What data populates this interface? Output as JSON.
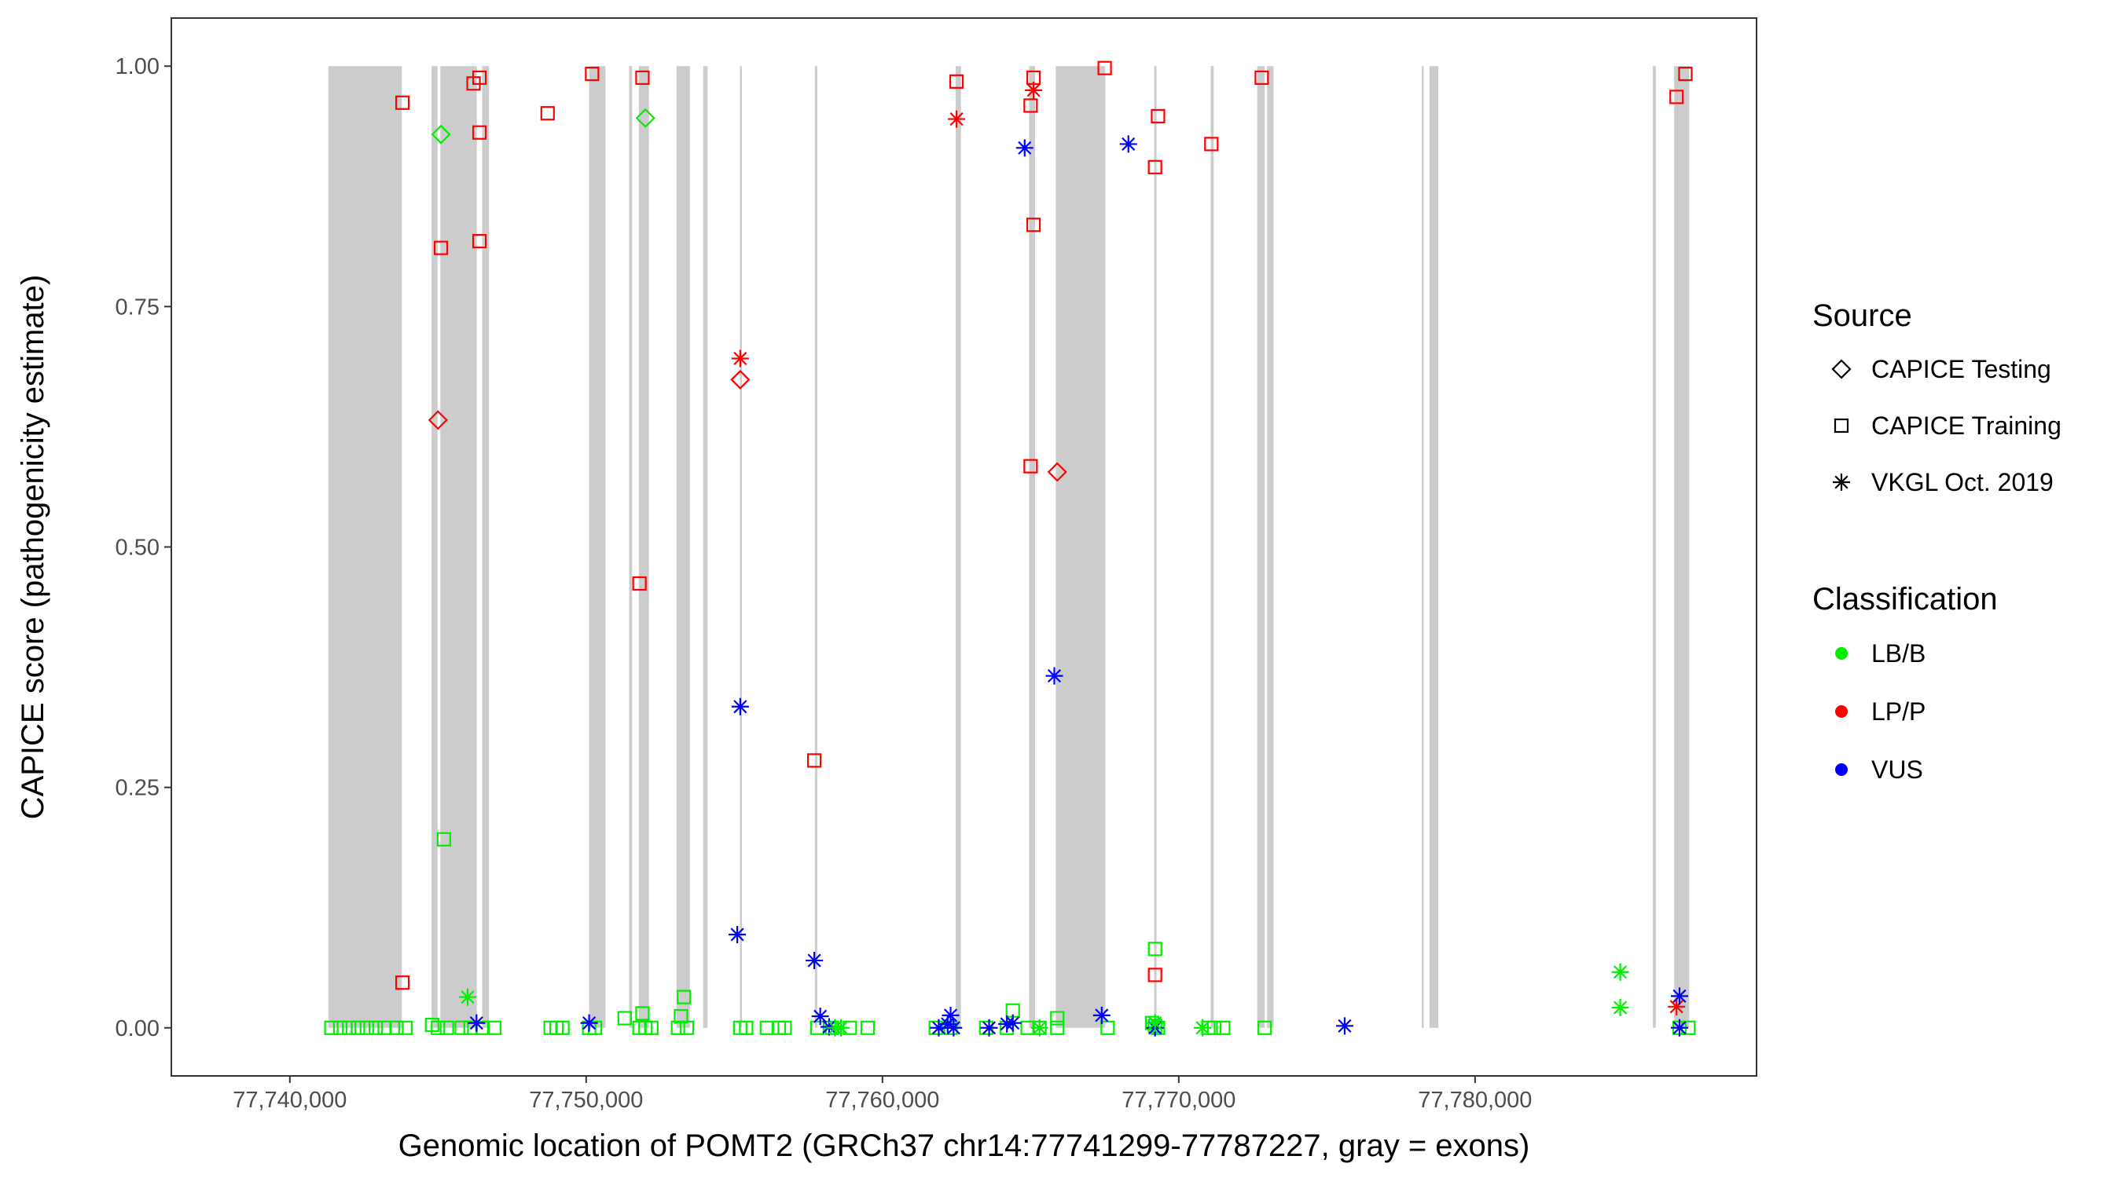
{
  "chart_data": {
    "type": "scatter",
    "xlabel": "Genomic location of POMT2 (GRCh37 chr14:77741299-77787227, gray = exons)",
    "ylabel": "CAPICE score (pathogenicity estimate)",
    "xlim": [
      77736000,
      77789500
    ],
    "ylim": [
      -0.05,
      1.05
    ],
    "x_ticks": [
      77740000,
      77750000,
      77760000,
      77770000,
      77780000
    ],
    "x_tick_labels": [
      "77,740,000",
      "77,750,000",
      "77,760,000",
      "77,770,000",
      "77,780,000"
    ],
    "y_ticks": [
      0,
      0.25,
      0.5,
      0.75,
      1.0
    ],
    "y_tick_labels": [
      "0.00",
      "0.25",
      "0.50",
      "0.75",
      "1.00"
    ],
    "grid": false,
    "exons": [
      [
        77741299,
        77743780
      ],
      [
        77744785,
        77744985
      ],
      [
        77745080,
        77746310
      ],
      [
        77746490,
        77746720
      ],
      [
        77750100,
        77750650
      ],
      [
        77751450,
        77751550
      ],
      [
        77751780,
        77752120
      ],
      [
        77753050,
        77753500
      ],
      [
        77753950,
        77754100
      ],
      [
        77755190,
        77755250
      ],
      [
        77757720,
        77757800
      ],
      [
        77762470,
        77762650
      ],
      [
        77764950,
        77765150
      ],
      [
        77765850,
        77767520
      ],
      [
        77769170,
        77769250
      ],
      [
        77771080,
        77771180
      ],
      [
        77772650,
        77772900
      ],
      [
        77772980,
        77773200
      ],
      [
        77778200,
        77778240
      ],
      [
        77778460,
        77778760
      ],
      [
        77786000,
        77786100
      ],
      [
        77786720,
        77787227
      ]
    ],
    "legend_source": {
      "title": "Source",
      "items": [
        {
          "label": "CAPICE Testing",
          "shape": "diamond"
        },
        {
          "label": "CAPICE Training",
          "shape": "square"
        },
        {
          "label": "VKGL Oct. 2019",
          "shape": "asterisk"
        }
      ]
    },
    "legend_classification": {
      "title": "Classification",
      "items": [
        {
          "label": "LB/B",
          "color": "#00ee00"
        },
        {
          "label": "LP/P",
          "color": "#ff0000"
        },
        {
          "label": "VUS",
          "color": "#0000ff"
        }
      ]
    },
    "series": [
      {
        "source": "CAPICE Training",
        "classification": "LP/P",
        "points": [
          [
            77743800,
            0.962
          ],
          [
            77743800,
            0.047
          ],
          [
            77746200,
            0.982
          ],
          [
            77746400,
            0.988
          ],
          [
            77746400,
            0.931
          ],
          [
            77745100,
            0.811
          ],
          [
            77746400,
            0.818
          ],
          [
            77748700,
            0.951
          ],
          [
            77750200,
            0.992
          ],
          [
            77751900,
            0.988
          ],
          [
            77751800,
            0.462
          ],
          [
            77757700,
            0.278
          ],
          [
            77762500,
            0.984
          ],
          [
            77765100,
            0.988
          ],
          [
            77765000,
            0.959
          ],
          [
            77765100,
            0.835
          ],
          [
            77765000,
            0.584
          ],
          [
            77767500,
            0.998
          ],
          [
            77769300,
            0.948
          ],
          [
            77769200,
            0.895
          ],
          [
            77769200,
            0.055
          ],
          [
            77771100,
            0.919
          ],
          [
            77772800,
            0.988
          ],
          [
            77786800,
            0.968
          ],
          [
            77787100,
            0.992
          ]
        ]
      },
      {
        "source": "CAPICE Training",
        "classification": "LB/B",
        "points": [
          [
            77741400,
            0
          ],
          [
            77741700,
            0
          ],
          [
            77742000,
            0
          ],
          [
            77742300,
            0
          ],
          [
            77742600,
            0
          ],
          [
            77742900,
            0
          ],
          [
            77743200,
            0
          ],
          [
            77743600,
            0
          ],
          [
            77743900,
            0
          ],
          [
            77744800,
            0.003
          ],
          [
            77745000,
            0
          ],
          [
            77745300,
            0
          ],
          [
            77745800,
            0
          ],
          [
            77746100,
            0
          ],
          [
            77746500,
            0
          ],
          [
            77746900,
            0
          ],
          [
            77745200,
            0.196
          ],
          [
            77748800,
            0
          ],
          [
            77749000,
            0
          ],
          [
            77749200,
            0
          ],
          [
            77750100,
            0
          ],
          [
            77750300,
            0
          ],
          [
            77751300,
            0.01
          ],
          [
            77751900,
            0.015
          ],
          [
            77751800,
            0
          ],
          [
            77752000,
            0
          ],
          [
            77752200,
            0
          ],
          [
            77753100,
            0
          ],
          [
            77753300,
            0.032
          ],
          [
            77753200,
            0.012
          ],
          [
            77753400,
            0
          ],
          [
            77755200,
            0
          ],
          [
            77755400,
            0
          ],
          [
            77756100,
            0
          ],
          [
            77756500,
            0
          ],
          [
            77756700,
            0
          ],
          [
            77757800,
            0
          ],
          [
            77758300,
            0
          ],
          [
            77758900,
            0
          ],
          [
            77759500,
            0
          ],
          [
            77761800,
            0
          ],
          [
            77762300,
            0
          ],
          [
            77763500,
            0
          ],
          [
            77764200,
            0
          ],
          [
            77764400,
            0.018
          ],
          [
            77764900,
            0
          ],
          [
            77765300,
            0
          ],
          [
            77765900,
            0.01
          ],
          [
            77765900,
            0
          ],
          [
            77767600,
            0
          ],
          [
            77769200,
            0.082
          ],
          [
            77769100,
            0.005
          ],
          [
            77769300,
            0
          ],
          [
            77769200,
            0.002
          ],
          [
            77771000,
            0
          ],
          [
            77771200,
            0
          ],
          [
            77771500,
            0
          ],
          [
            77772900,
            0
          ],
          [
            77786900,
            0
          ],
          [
            77787200,
            0
          ]
        ]
      },
      {
        "source": "CAPICE Testing",
        "classification": "LB/B",
        "points": [
          [
            77745100,
            0.929
          ],
          [
            77752000,
            0.946
          ]
        ]
      },
      {
        "source": "CAPICE Testing",
        "classification": "LP/P",
        "points": [
          [
            77745000,
            0.632
          ],
          [
            77755200,
            0.674
          ],
          [
            77765900,
            0.578
          ]
        ]
      },
      {
        "source": "VKGL Oct. 2019",
        "classification": "LP/P",
        "points": [
          [
            77755200,
            0.696
          ],
          [
            77762500,
            0.945
          ],
          [
            77765100,
            0.975
          ],
          [
            77786800,
            0.022
          ]
        ]
      },
      {
        "source": "VKGL Oct. 2019",
        "classification": "VUS",
        "points": [
          [
            77746300,
            0.005
          ],
          [
            77750100,
            0.005
          ],
          [
            77755100,
            0.097
          ],
          [
            77755200,
            0.334
          ],
          [
            77757700,
            0.07
          ],
          [
            77757900,
            0.012
          ],
          [
            77758200,
            0.001
          ],
          [
            77761900,
            0
          ],
          [
            77762200,
            0.004
          ],
          [
            77762300,
            0.013
          ],
          [
            77762400,
            0
          ],
          [
            77763600,
            0
          ],
          [
            77764200,
            0.004
          ],
          [
            77764400,
            0.005
          ],
          [
            77764800,
            0.915
          ],
          [
            77765800,
            0.366
          ],
          [
            77767400,
            0.013
          ],
          [
            77768300,
            0.919
          ],
          [
            77769200,
            0
          ],
          [
            77775600,
            0.002
          ],
          [
            77786900,
            0.033
          ],
          [
            77786900,
            0
          ]
        ]
      },
      {
        "source": "VKGL Oct. 2019",
        "classification": "LB/B",
        "points": [
          [
            77746000,
            0.032
          ],
          [
            77758400,
            0
          ],
          [
            77758600,
            0
          ],
          [
            77765300,
            0
          ],
          [
            77769200,
            0.005
          ],
          [
            77770800,
            0
          ],
          [
            77784900,
            0.058
          ],
          [
            77784900,
            0.021
          ]
        ]
      }
    ]
  }
}
